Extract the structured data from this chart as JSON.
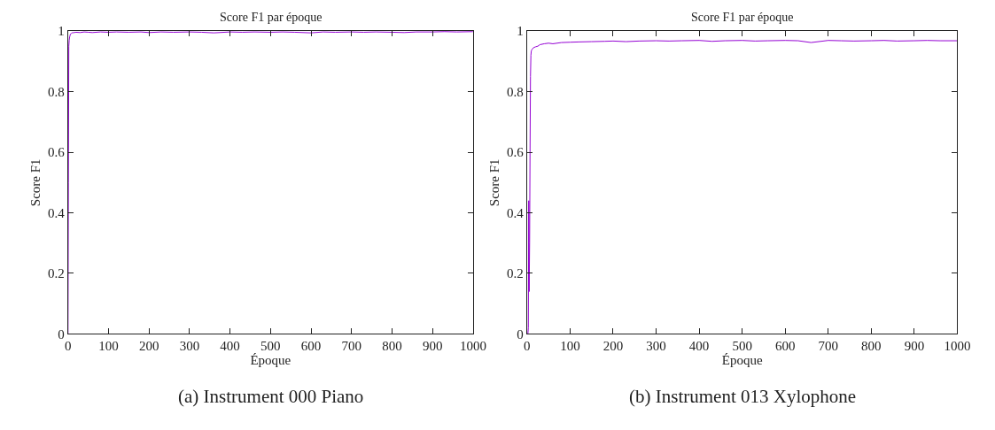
{
  "chart_data": [
    {
      "type": "line",
      "title": "Score F1 par époque",
      "xlabel": "Époque",
      "ylabel": "Score F1",
      "annotations": [
        "(a) Instrument 000 Piano"
      ],
      "series": [
        {
          "color": "#9400d3",
          "x": [
            0,
            1,
            2,
            3,
            4,
            5,
            6,
            8,
            10,
            15,
            20,
            30,
            40,
            50,
            60,
            80,
            100,
            120,
            150,
            180,
            200,
            230,
            260,
            300,
            330,
            360,
            400,
            430,
            460,
            500,
            530,
            560,
            600,
            630,
            660,
            700,
            730,
            760,
            800,
            830,
            860,
            900,
            930,
            960,
            1000
          ],
          "values": [
            0,
            0.5,
            0.95,
            0.97,
            0.98,
            0.985,
            0.99,
            0.992,
            0.994,
            0.995,
            0.996,
            0.995,
            0.997,
            0.996,
            0.995,
            0.997,
            0.996,
            0.997,
            0.996,
            0.997,
            0.995,
            0.997,
            0.996,
            0.997,
            0.996,
            0.994,
            0.997,
            0.996,
            0.997,
            0.996,
            0.997,
            0.996,
            0.994,
            0.997,
            0.996,
            0.997,
            0.996,
            0.997,
            0.996,
            0.995,
            0.997,
            0.997,
            0.998,
            0.997,
            0.998
          ]
        }
      ],
      "xlim": [
        0,
        1000
      ],
      "ylim": [
        0,
        1
      ],
      "yticks": [
        0,
        0.2,
        0.4,
        0.6,
        0.8,
        1
      ],
      "xticks": [
        0,
        100,
        200,
        300,
        400,
        500,
        600,
        700,
        800,
        900,
        1000
      ],
      "line_style": "solid"
    },
    {
      "type": "line",
      "title": "Score F1 par époque",
      "xlabel": "Époque",
      "ylabel": "Score F1",
      "annotations": [
        "(b) Instrument 013 Xylophone"
      ],
      "series": [
        {
          "color": "#9400d3",
          "x": [
            0,
            2,
            3,
            4,
            5,
            6,
            7,
            8,
            9,
            10,
            12,
            15,
            20,
            25,
            30,
            40,
            50,
            60,
            80,
            100,
            120,
            150,
            180,
            200,
            230,
            260,
            300,
            330,
            360,
            400,
            430,
            460,
            500,
            530,
            560,
            600,
            630,
            660,
            700,
            730,
            760,
            800,
            830,
            860,
            900,
            930,
            960,
            1000
          ],
          "values": [
            0,
            0,
            0.02,
            0.44,
            0.14,
            0.3,
            0.6,
            0.85,
            0.92,
            0.935,
            0.94,
            0.945,
            0.948,
            0.95,
            0.955,
            0.958,
            0.96,
            0.958,
            0.962,
            0.963,
            0.964,
            0.965,
            0.966,
            0.967,
            0.965,
            0.967,
            0.968,
            0.967,
            0.968,
            0.969,
            0.966,
            0.968,
            0.969,
            0.967,
            0.968,
            0.969,
            0.968,
            0.962,
            0.969,
            0.968,
            0.967,
            0.968,
            0.969,
            0.967,
            0.968,
            0.969,
            0.968,
            0.968
          ]
        }
      ],
      "xlim": [
        0,
        1000
      ],
      "ylim": [
        0,
        1
      ],
      "yticks": [
        0,
        0.2,
        0.4,
        0.6,
        0.8,
        1
      ],
      "xticks": [
        0,
        100,
        200,
        300,
        400,
        500,
        600,
        700,
        800,
        900,
        1000
      ],
      "line_style": "solid"
    }
  ]
}
